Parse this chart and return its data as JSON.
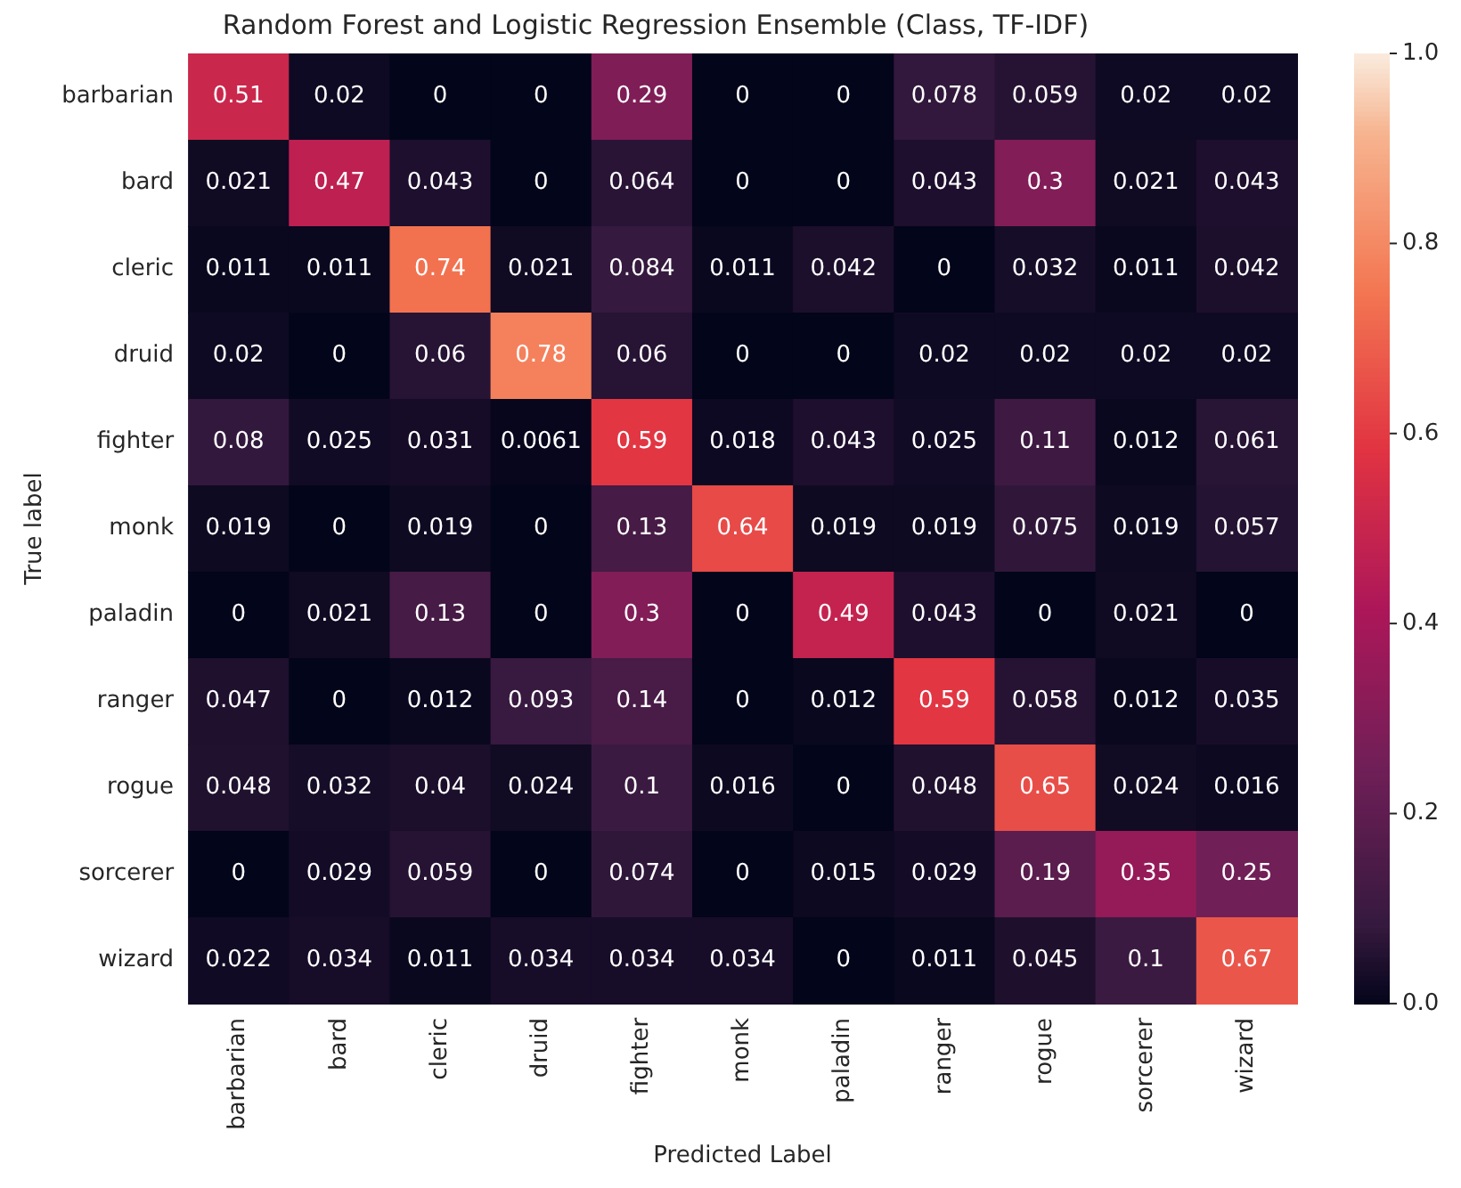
{
  "chart_data": {
    "type": "heatmap",
    "title": "Random Forest and Logistic Regression Ensemble (Class, TF-IDF)",
    "xlabel": "Predicted Label",
    "ylabel": "True label",
    "categories": [
      "barbarian",
      "bard",
      "cleric",
      "druid",
      "fighter",
      "monk",
      "paladin",
      "ranger",
      "rogue",
      "sorcerer",
      "wizard"
    ],
    "y_categories": [
      "barbarian",
      "bard",
      "cleric",
      "druid",
      "fighter",
      "monk",
      "paladin",
      "ranger",
      "rogue",
      "sorcerer",
      "wizard"
    ],
    "cells": [
      [
        0.51,
        0.02,
        0,
        0,
        0.29,
        0,
        0,
        0.078,
        0.059,
        0.02,
        0.02
      ],
      [
        0.021,
        0.47,
        0.043,
        0,
        0.064,
        0,
        0,
        0.043,
        0.3,
        0.021,
        0.043
      ],
      [
        0.011,
        0.011,
        0.74,
        0.021,
        0.084,
        0.011,
        0.042,
        0,
        0.032,
        0.011,
        0.042
      ],
      [
        0.02,
        0,
        0.06,
        0.78,
        0.06,
        0,
        0,
        0.02,
        0.02,
        0.02,
        0.02
      ],
      [
        0.08,
        0.025,
        0.031,
        0.0061,
        0.59,
        0.018,
        0.043,
        0.025,
        0.11,
        0.012,
        0.061
      ],
      [
        0.019,
        0,
        0.019,
        0,
        0.13,
        0.64,
        0.019,
        0.019,
        0.075,
        0.019,
        0.057
      ],
      [
        0,
        0.021,
        0.13,
        0,
        0.3,
        0,
        0.49,
        0.043,
        0,
        0.021,
        0
      ],
      [
        0.047,
        0,
        0.012,
        0.093,
        0.14,
        0,
        0.012,
        0.59,
        0.058,
        0.012,
        0.035
      ],
      [
        0.048,
        0.032,
        0.04,
        0.024,
        0.1,
        0.016,
        0,
        0.048,
        0.65,
        0.024,
        0.016
      ],
      [
        0,
        0.029,
        0.059,
        0,
        0.074,
        0,
        0.015,
        0.029,
        0.19,
        0.35,
        0.25
      ],
      [
        0.022,
        0.034,
        0.011,
        0.034,
        0.034,
        0.034,
        0,
        0.011,
        0.045,
        0.1,
        0.67
      ]
    ],
    "data_labels": true,
    "clim": [
      0,
      1
    ],
    "cticks": [
      {
        "value": 0,
        "label": "0.0"
      },
      {
        "value": 0.2,
        "label": "0.2"
      },
      {
        "value": 0.4,
        "label": "0.4"
      },
      {
        "value": 0.6,
        "label": "0.6"
      },
      {
        "value": 0.8,
        "label": "0.8"
      },
      {
        "value": 1,
        "label": "1.0"
      }
    ],
    "grid": false
  }
}
